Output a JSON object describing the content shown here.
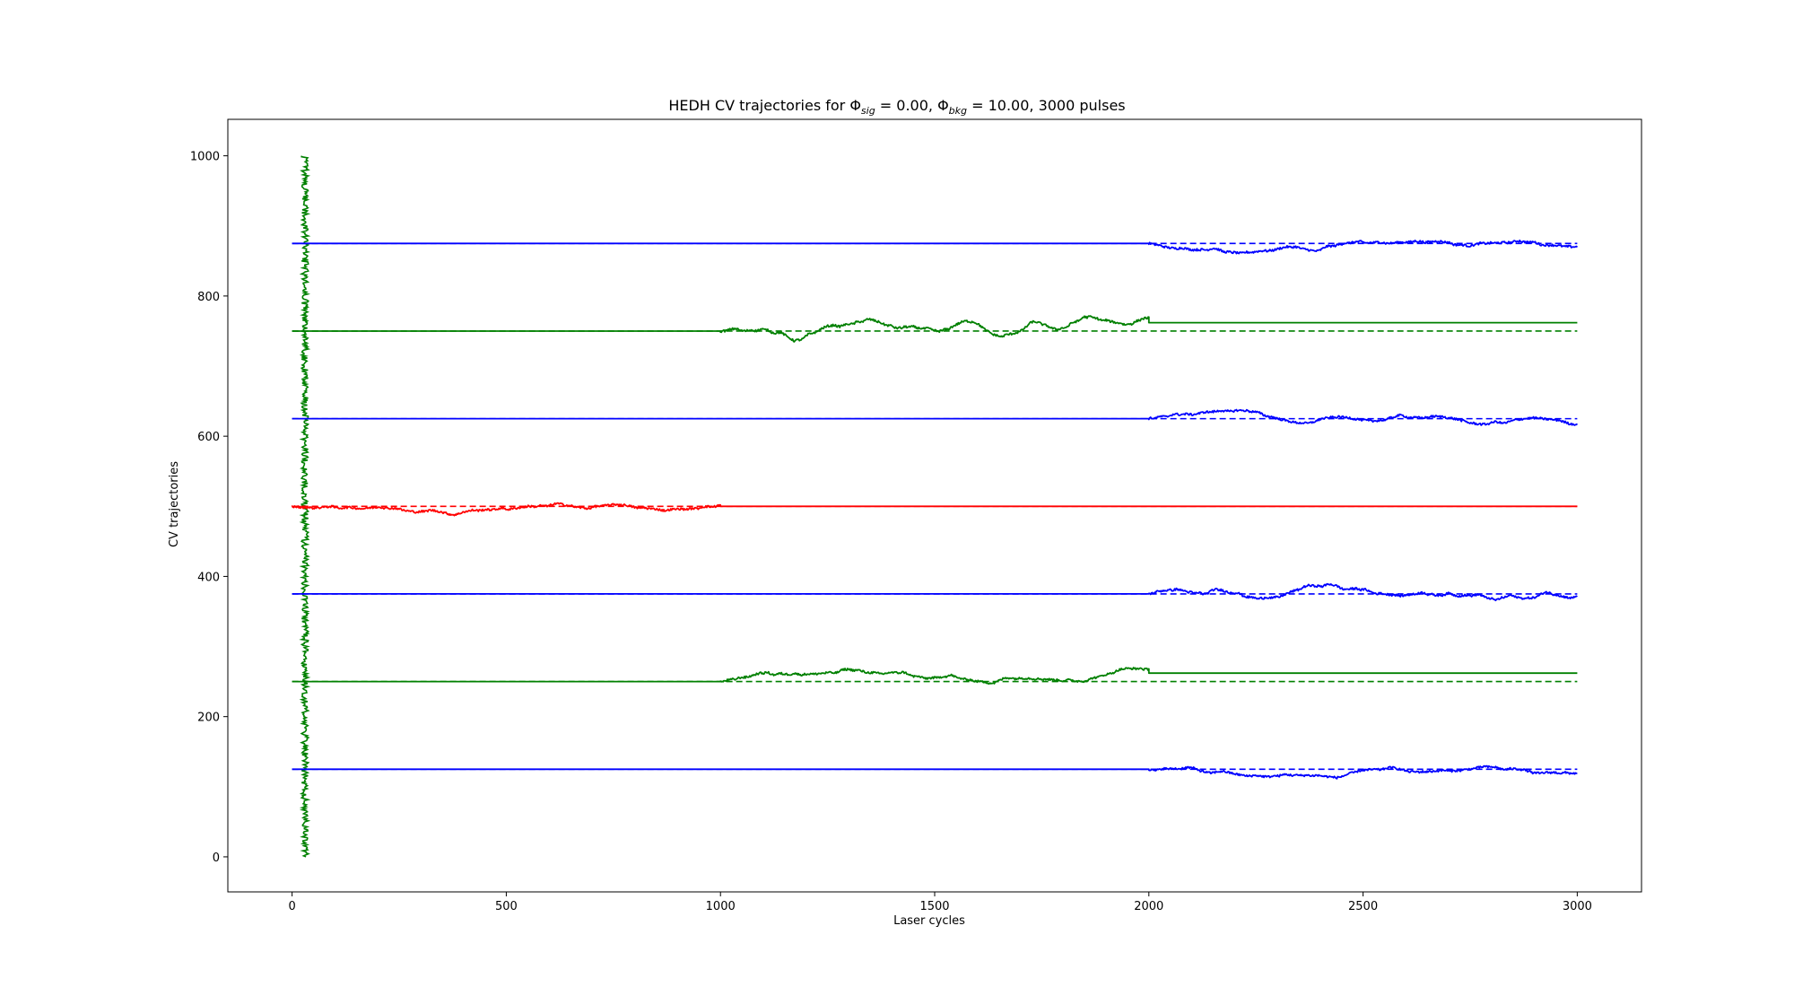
{
  "chart_data": {
    "type": "line",
    "title_prefix": "HEDH CV trajectories for ",
    "title_sig_symbol": "Φ",
    "title_sig_sub": "sig",
    "title_sig_value": " = 0.00, ",
    "title_bkg_symbol": "Φ",
    "title_bkg_sub": "bkg",
    "title_bkg_value": " = 10.00, 3000 pulses",
    "xlabel": "Laser cycles",
    "ylabel": "CV trajectories",
    "xlim": [
      -150,
      3150
    ],
    "ylim": [
      -50,
      1052
    ],
    "xticks": [
      0,
      500,
      1000,
      1500,
      2000,
      2500,
      3000
    ],
    "yticks": [
      0,
      200,
      400,
      600,
      800,
      1000
    ],
    "grid": false,
    "colors": {
      "blue": "#0000ff",
      "green": "#008000",
      "red": "#ff0000"
    },
    "series": [
      {
        "color": "green",
        "kind": "vertical",
        "x_center": 30,
        "x_spread": 8,
        "y_range": [
          0,
          1000
        ],
        "style": "solid"
      },
      {
        "color": "blue",
        "base": 875,
        "active": [
          2000,
          3000
        ],
        "offset_after": 0,
        "amp": 14,
        "style": "solid"
      },
      {
        "color": "blue",
        "base": 875,
        "style": "dashed",
        "x_range": [
          0,
          3000
        ]
      },
      {
        "color": "green",
        "base": 750,
        "active": [
          1000,
          2000
        ],
        "offset_after": 12,
        "amp": 16,
        "style": "solid"
      },
      {
        "color": "green",
        "base": 750,
        "style": "dashed",
        "x_range": [
          0,
          3000
        ]
      },
      {
        "color": "blue",
        "base": 625,
        "active": [
          2000,
          3000
        ],
        "offset_after": 0,
        "amp": 12,
        "style": "solid"
      },
      {
        "color": "blue",
        "base": 625,
        "style": "dashed",
        "x_range": [
          0,
          3000
        ]
      },
      {
        "color": "red",
        "base": 500,
        "active": [
          0,
          1000
        ],
        "offset_after": 0,
        "amp": 12,
        "style": "solid"
      },
      {
        "color": "red",
        "base": 500,
        "style": "dashed",
        "x_range": [
          0,
          3000
        ]
      },
      {
        "color": "blue",
        "base": 375,
        "active": [
          2000,
          3000
        ],
        "offset_after": 0,
        "amp": 14,
        "style": "solid"
      },
      {
        "color": "blue",
        "base": 375,
        "style": "dashed",
        "x_range": [
          0,
          3000
        ]
      },
      {
        "color": "green",
        "base": 250,
        "active": [
          1000,
          2000
        ],
        "offset_after": 12,
        "amp": 14,
        "style": "solid"
      },
      {
        "color": "green",
        "base": 250,
        "style": "dashed",
        "x_range": [
          0,
          3000
        ]
      },
      {
        "color": "blue",
        "base": 125,
        "active": [
          2000,
          3000
        ],
        "offset_after": 0,
        "amp": 12,
        "style": "solid"
      },
      {
        "color": "blue",
        "base": 125,
        "style": "dashed",
        "x_range": [
          0,
          3000
        ]
      }
    ]
  }
}
